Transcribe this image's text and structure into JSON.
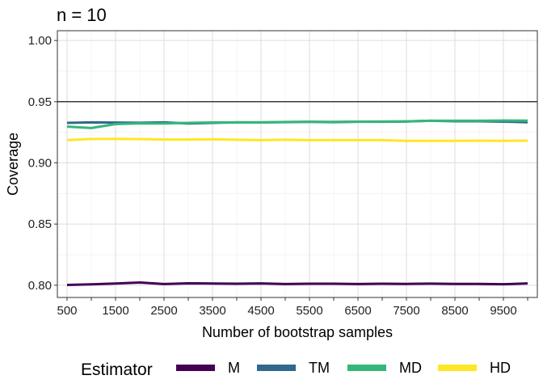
{
  "chart_data": {
    "type": "line",
    "title": "n = 10",
    "xlabel": "Number of bootstrap samples",
    "ylabel": "Coverage",
    "xlim": [
      300,
      10200
    ],
    "ylim": [
      0.79,
      1.008
    ],
    "x_ticks": [
      500,
      1500,
      2500,
      3500,
      4500,
      5500,
      6500,
      7500,
      8500,
      9500
    ],
    "x_tick_labels": [
      "500",
      "1500",
      "2500",
      "3500",
      "4500",
      "5500",
      "6500",
      "7500",
      "8500",
      "9500"
    ],
    "x_minor_ticks": [
      1000,
      2000,
      3000,
      4000,
      5000,
      6000,
      7000,
      8000,
      9000,
      10000
    ],
    "y_ticks": [
      0.8,
      0.85,
      0.9,
      0.95,
      1.0
    ],
    "y_tick_labels": [
      "0.80",
      "0.85",
      "0.90",
      "0.95",
      "1.00"
    ],
    "grid": true,
    "reference_line": 0.95,
    "legend_position": "bottom",
    "legend_title": "Estimator",
    "x": [
      500,
      1000,
      1500,
      2000,
      2500,
      3000,
      3500,
      4000,
      4500,
      5000,
      5500,
      6000,
      6500,
      7000,
      7500,
      8000,
      8500,
      9000,
      9500,
      10000
    ],
    "series": [
      {
        "name": "M",
        "color": "#440154",
        "values": [
          0.8002,
          0.8007,
          0.8014,
          0.8022,
          0.801,
          0.8016,
          0.8014,
          0.8012,
          0.8015,
          0.801,
          0.8012,
          0.8012,
          0.801,
          0.8012,
          0.8011,
          0.8013,
          0.8011,
          0.8011,
          0.8008,
          0.8015
        ]
      },
      {
        "name": "TM",
        "color": "#31688E",
        "values": [
          0.9327,
          0.9331,
          0.9329,
          0.9328,
          0.9331,
          0.9322,
          0.9327,
          0.9331,
          0.9331,
          0.9333,
          0.9335,
          0.9333,
          0.9336,
          0.9336,
          0.9338,
          0.9344,
          0.934,
          0.934,
          0.9337,
          0.9332
        ]
      },
      {
        "name": "MD",
        "color": "#35B779",
        "values": [
          0.9296,
          0.9285,
          0.9317,
          0.9323,
          0.9322,
          0.9327,
          0.933,
          0.9331,
          0.933,
          0.9334,
          0.9336,
          0.9335,
          0.9337,
          0.9338,
          0.9339,
          0.9344,
          0.9344,
          0.9344,
          0.9346,
          0.9345
        ]
      },
      {
        "name": "HD",
        "color": "#FDE725",
        "values": [
          0.9186,
          0.9196,
          0.9196,
          0.9195,
          0.9191,
          0.9191,
          0.9192,
          0.9189,
          0.9186,
          0.9189,
          0.9186,
          0.9186,
          0.9186,
          0.9186,
          0.918,
          0.918,
          0.918,
          0.9181,
          0.918,
          0.9181
        ]
      }
    ]
  }
}
